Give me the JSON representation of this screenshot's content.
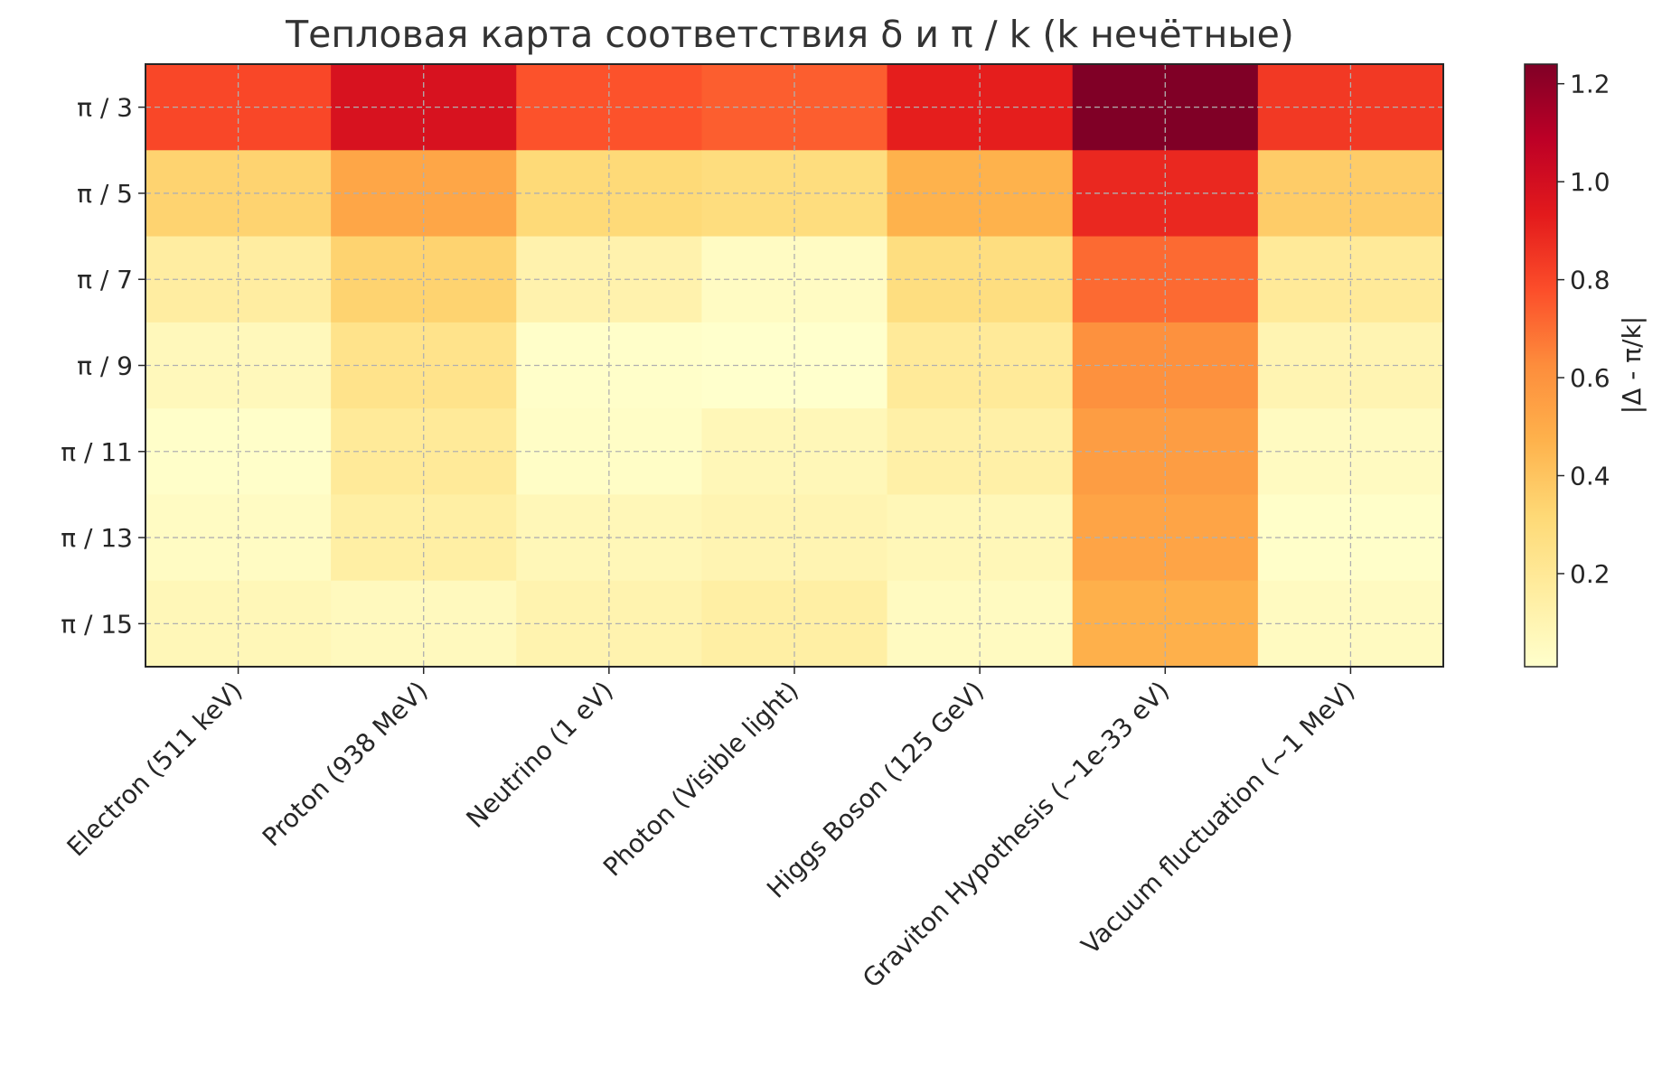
{
  "chart_data": {
    "type": "heatmap",
    "title": "Тепловая карта соответствия δ и π / k (k нечётные)",
    "rows": [
      "π / 3",
      "π / 5",
      "π / 7",
      "π / 9",
      "π / 11",
      "π / 13",
      "π / 15"
    ],
    "columns": [
      "Electron (511 keV)",
      "Proton (938 MeV)",
      "Neutrino (1 eV)",
      "Photon (Visible light)",
      "Higgs Boson (125 GeV)",
      "Graviton Hypothesis (~1e-33 eV)",
      "Vacuum fluctuation (~1 MeV)"
    ],
    "values": [
      [
        0.8,
        0.98,
        0.77,
        0.74,
        0.92,
        1.24,
        0.84
      ],
      [
        0.34,
        0.52,
        0.31,
        0.29,
        0.47,
        0.89,
        0.37
      ],
      [
        0.16,
        0.34,
        0.12,
        0.04,
        0.28,
        0.71,
        0.19
      ],
      [
        0.07,
        0.24,
        0.02,
        0.01,
        0.19,
        0.61,
        0.1
      ],
      [
        0.02,
        0.19,
        0.03,
        0.08,
        0.14,
        0.56,
        0.05
      ],
      [
        0.04,
        0.15,
        0.08,
        0.1,
        0.08,
        0.53,
        0.02
      ],
      [
        0.08,
        0.06,
        0.11,
        0.15,
        0.05,
        0.48,
        0.05
      ]
    ],
    "colorbar": {
      "label": "|Δ - π/k|",
      "ticks": [
        "0.2",
        "0.4",
        "0.6",
        "0.8",
        "1.0",
        "1.2"
      ],
      "tick_values": [
        0.2,
        0.4,
        0.6,
        0.8,
        1.0,
        1.2
      ],
      "range": [
        0.01,
        1.24
      ],
      "colormap": "YlOrRd"
    },
    "grid": true
  }
}
